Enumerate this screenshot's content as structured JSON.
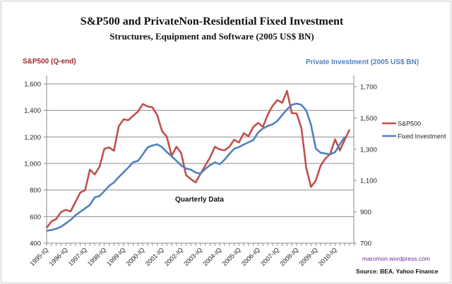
{
  "chart_data": {
    "type": "line",
    "title": "S&P500 and PrivateNon-Residential  Fixed Investment",
    "subtitle": "Structures, Equipment and Software (2005 US$ BN)",
    "ylabel_left": "S&P500 (Q-end)",
    "ylabel_right": "Private Investment  (2005 US$ BN)",
    "annotation": "Quarterly Data",
    "ylim_left": [
      400,
      1600
    ],
    "yticks_left": [
      "400",
      "600",
      "800",
      "1,000",
      "1,200",
      "1,400",
      "1,600"
    ],
    "ylim_right": [
      700,
      1700
    ],
    "yticks_right": [
      "700",
      "900",
      "1,100",
      "1,300",
      "1,500",
      "1,700"
    ],
    "x_tick_labels": [
      "1995-IQ",
      "1996-IQ",
      "1997-IQ",
      "1998-IQ",
      "1999-IQ",
      "2000-IQ",
      "2001-IQ",
      "2002-IQ",
      "2003-IQ",
      "2004-IQ",
      "2005-IQ",
      "2006-IQ",
      "2007-IQ",
      "2008-IQ",
      "2009-IQ",
      "2010-IQ"
    ],
    "x_start": "1995-IQ",
    "x_end": "2010-IVQ",
    "frequency": "quarterly",
    "grid": "horizontal",
    "legend_position": "right",
    "series": [
      {
        "name": "S&P500",
        "axis": "left",
        "color": "#c0504d",
        "values": [
          515,
          563,
          582,
          634,
          651,
          639,
          710,
          781,
          798,
          954,
          917,
          975,
          1110,
          1121,
          1096,
          1280,
          1333,
          1326,
          1360,
          1391,
          1448,
          1430,
          1423,
          1365,
          1244,
          1202,
          1058,
          1127,
          1078,
          913,
          882,
          857,
          922,
          984,
          1046,
          1126,
          1106,
          1099,
          1126,
          1179,
          1158,
          1228,
          1205,
          1276,
          1306,
          1276,
          1368,
          1435,
          1478,
          1457,
          1547,
          1379,
          1377,
          1267,
          967,
          823,
          873,
          984,
          1037,
          1073,
          1182,
          1099,
          1179,
          1255
        ]
      },
      {
        "name": "Fixed Investment",
        "axis": "right",
        "color": "#4f81bd",
        "values": [
          779,
          784,
          792,
          805,
          826,
          848,
          878,
          900,
          922,
          944,
          993,
          1001,
          1033,
          1066,
          1088,
          1122,
          1152,
          1184,
          1217,
          1226,
          1267,
          1312,
          1324,
          1332,
          1314,
          1282,
          1256,
          1226,
          1196,
          1177,
          1170,
          1152,
          1144,
          1174,
          1199,
          1216,
          1204,
          1233,
          1270,
          1303,
          1314,
          1330,
          1344,
          1359,
          1407,
          1433,
          1448,
          1460,
          1481,
          1519,
          1555,
          1584,
          1592,
          1584,
          1549,
          1456,
          1304,
          1278,
          1273,
          1267,
          1282,
          1332,
          1379,
          null
        ]
      }
    ]
  },
  "footer": {
    "site": "maromon.wordpress.com",
    "source": "Source:   BEA. Yahoo Finance"
  },
  "colors": {
    "sp500": "#c0504d",
    "investment": "#4f81bd",
    "left_label": "#a0282a",
    "right_label": "#4f81bd",
    "site": "#7030a0"
  }
}
